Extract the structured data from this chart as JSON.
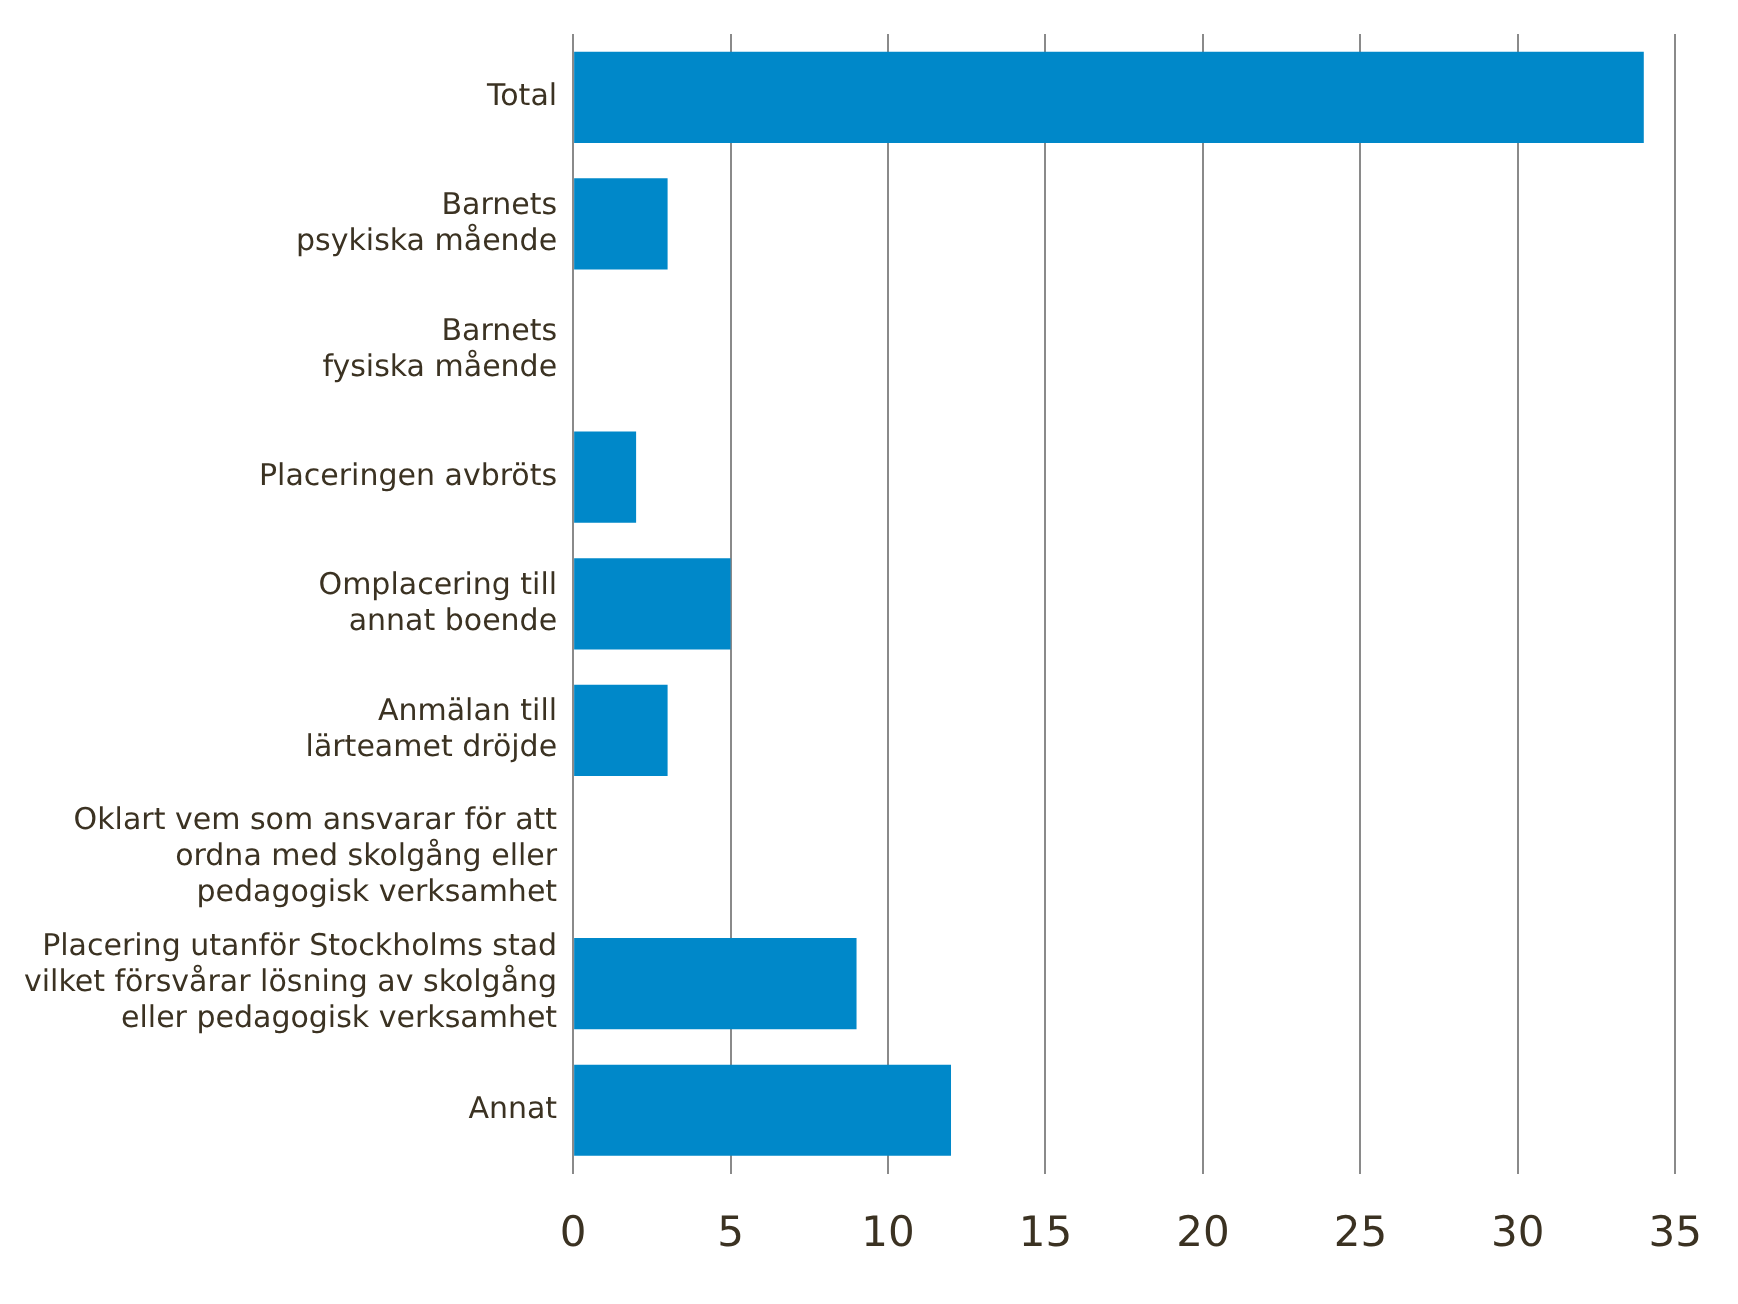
{
  "chart_data": {
    "type": "bar",
    "orientation": "horizontal",
    "categories": [
      "Total",
      "Barnets\npsykiska mående",
      "Barnets\nfysiska mående",
      "Placeringen avbröts",
      "Omplacering till\nannat boende",
      "Anmälan till\nlärteamet dröjde",
      "Oklart vem som ansvarar för att\nordna med skolgång eller\npedagogisk verksamhet",
      "Placering utanför Stockholms stad\nvilket försvårar lösning av skolgång\neller pedagogisk verksamhet",
      "Annat"
    ],
    "values": [
      34,
      3,
      0,
      2,
      5,
      3,
      0,
      9,
      12
    ],
    "color": "#0088c9",
    "xlim": [
      0,
      35
    ],
    "xticks": [
      0,
      5,
      10,
      15,
      20,
      25,
      30,
      35
    ],
    "grid": "x",
    "legend": false
  }
}
